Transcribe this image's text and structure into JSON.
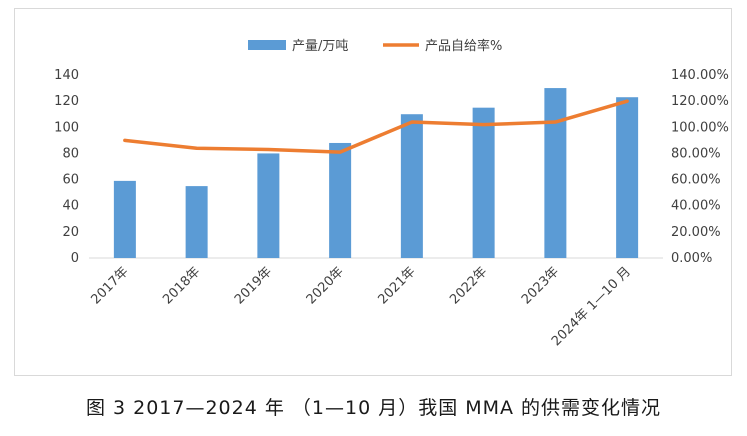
{
  "chart_data": {
    "type": "bar",
    "categories": [
      "2017年",
      "2018年",
      "2019年",
      "2020年",
      "2021年",
      "2022年",
      "2023年",
      "2024年 1—10 月"
    ],
    "series": [
      {
        "name": "产量/万吨",
        "type": "bar",
        "axis": "left",
        "color": "#5b9bd5",
        "values": [
          59,
          55,
          80,
          88,
          110,
          115,
          130,
          123
        ]
      },
      {
        "name": "产品自给率%",
        "type": "line",
        "axis": "right",
        "color": "#ed7d31",
        "values": [
          0.9,
          0.84,
          0.83,
          0.81,
          1.04,
          1.02,
          1.04,
          1.2
        ]
      }
    ],
    "y_left": {
      "min": 0,
      "max": 140,
      "step": 20,
      "tick_labels": [
        "0",
        "20",
        "40",
        "60",
        "80",
        "100",
        "120",
        "140"
      ]
    },
    "y_right": {
      "min": 0,
      "max": 1.4,
      "step": 0.2,
      "tick_labels": [
        "0.00%",
        "20.00%",
        "40.00%",
        "60.00%",
        "80.00%",
        "100.00%",
        "120.00%",
        "140.00%"
      ]
    },
    "legend_position": "top-center",
    "grid": false,
    "title": ""
  },
  "caption": "图 3  2017—2024 年 （1—10 月）我国 MMA 的供需变化情况"
}
